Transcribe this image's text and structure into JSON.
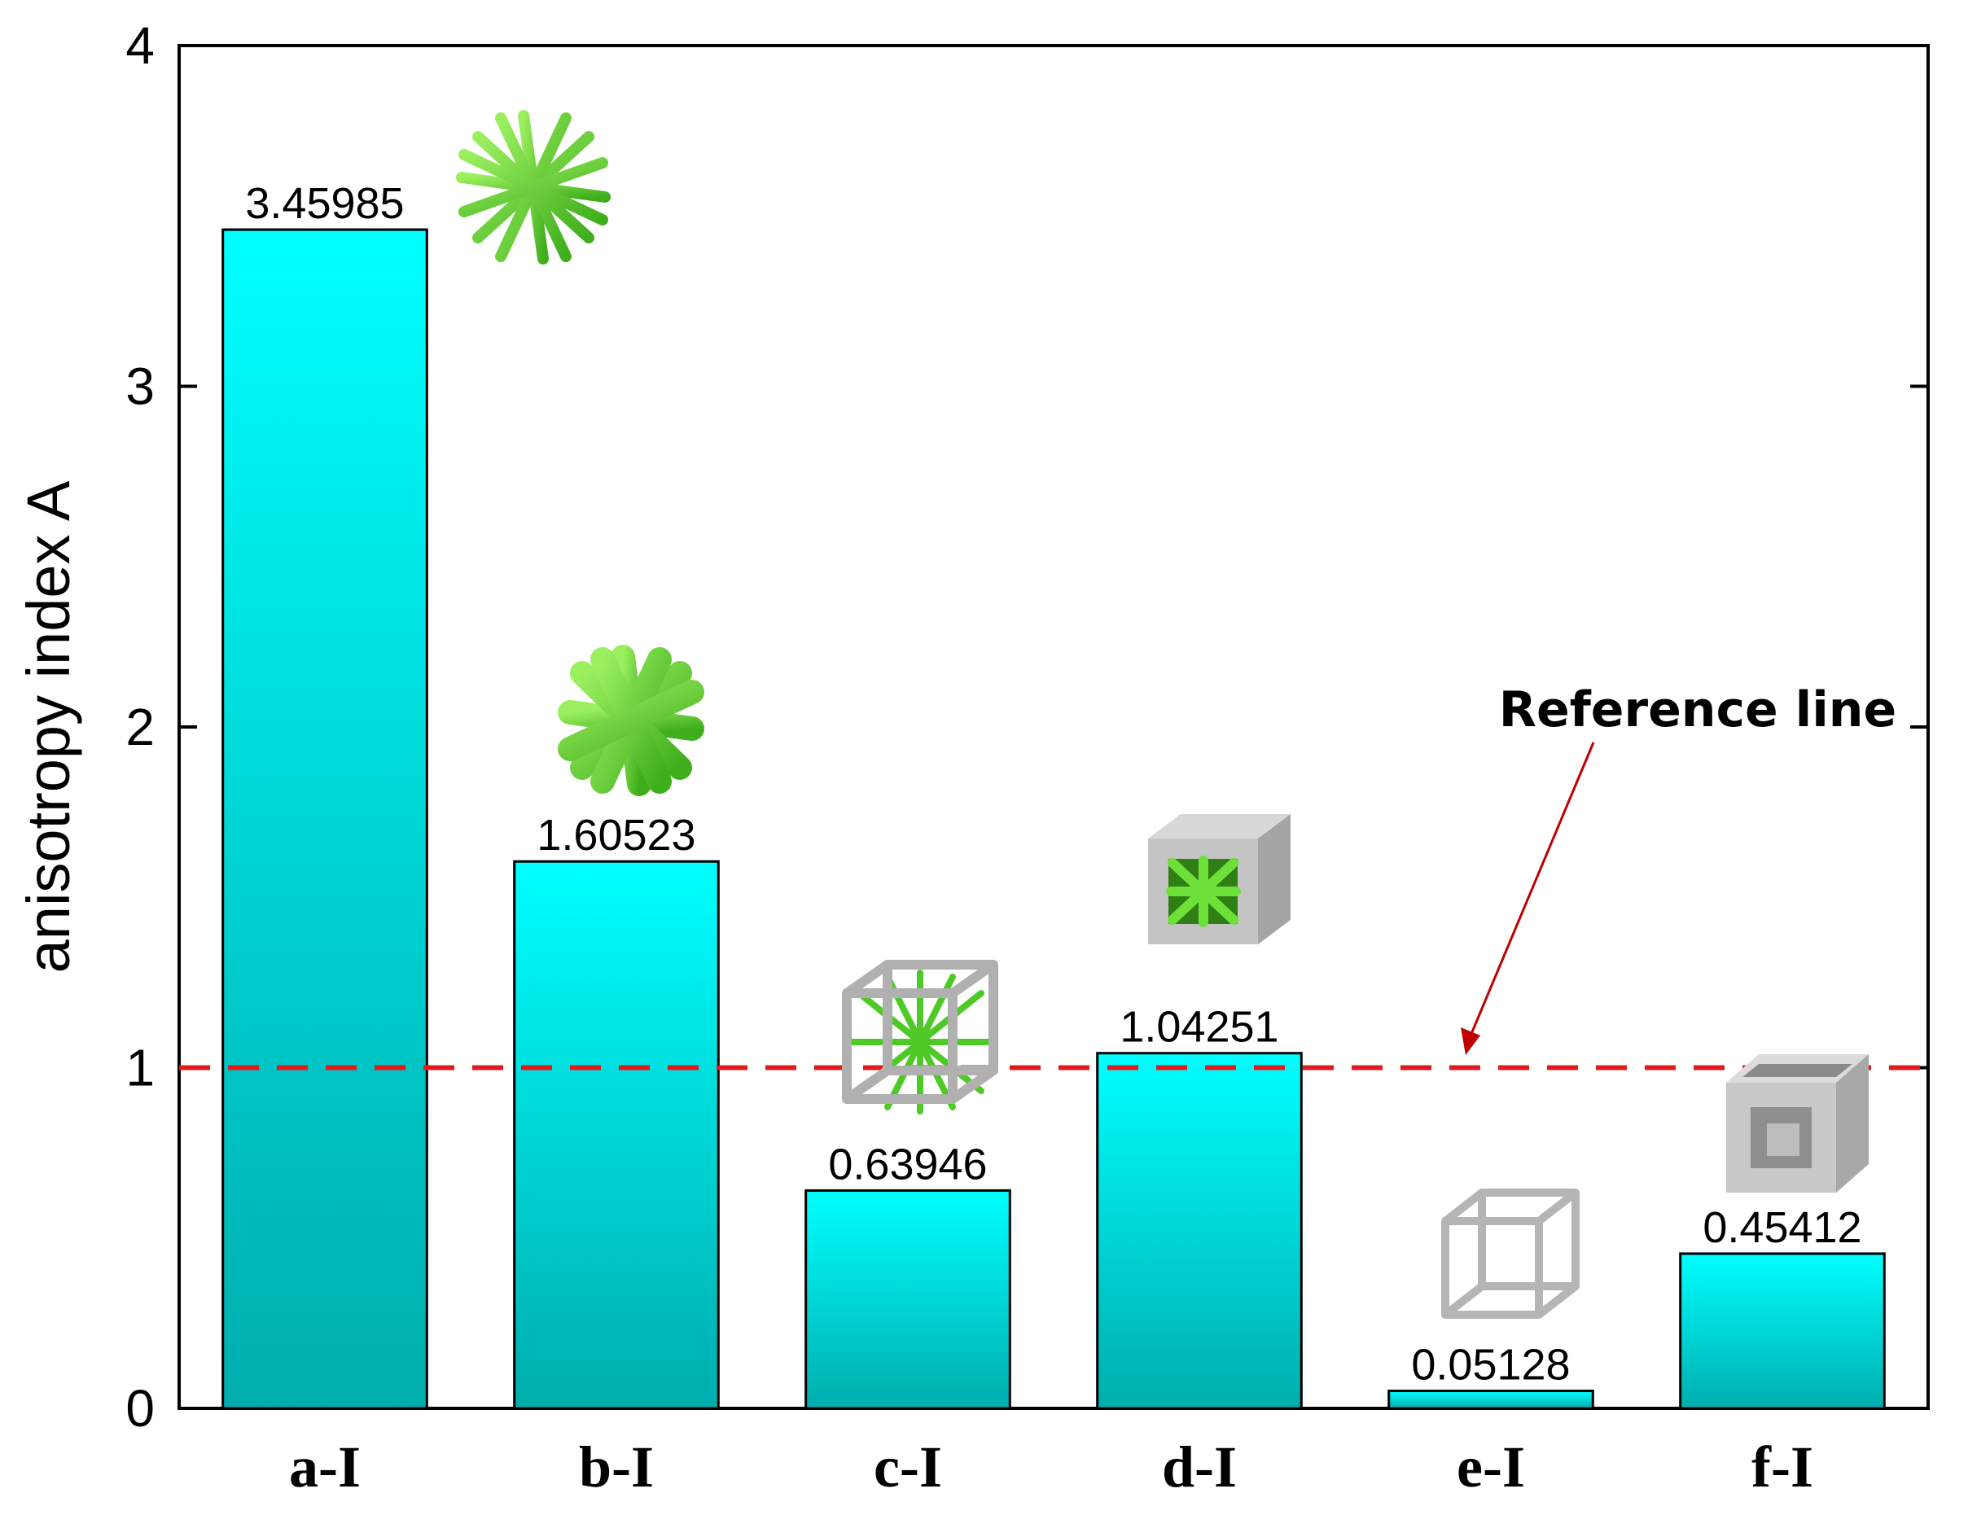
{
  "chart_data": {
    "type": "bar",
    "title": "",
    "xlabel": "",
    "ylabel": "anisotropy index A",
    "categories": [
      "a-I",
      "b-I",
      "c-I",
      "d-I",
      "e-I",
      "f-I"
    ],
    "values": [
      3.45985,
      1.60523,
      0.63946,
      1.04251,
      0.05128,
      0.45412
    ],
    "value_labels": [
      "3.45985",
      "1.60523",
      "0.63946",
      "1.04251",
      "0.05128",
      "0.45412"
    ],
    "ylim": [
      0,
      4
    ],
    "yticks": [
      0,
      1,
      2,
      3,
      4
    ],
    "grid": false,
    "reference_line": {
      "y": 1,
      "label": "Reference line",
      "style": "dashed",
      "color": "#e31a1c"
    },
    "bar_colors": {
      "top": "#00ffff",
      "bottom": "#00adad"
    },
    "unit_cell_icons": [
      {
        "category": "a-I",
        "icon": "green-star-strut-icon"
      },
      {
        "category": "b-I",
        "icon": "thick-green-star-strut-icon"
      },
      {
        "category": "c-I",
        "icon": "cube-frame-with-green-struts-icon"
      },
      {
        "category": "d-I",
        "icon": "solid-cube-frame-with-green-core-icon"
      },
      {
        "category": "e-I",
        "icon": "thin-cube-frame-icon"
      },
      {
        "category": "f-I",
        "icon": "thick-cube-frame-icon"
      }
    ]
  }
}
